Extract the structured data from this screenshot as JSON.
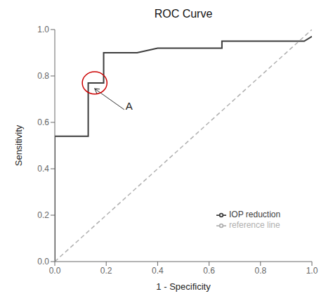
{
  "chart_data": {
    "type": "line",
    "title": "ROC Curve",
    "xlabel": "1 - Specificity",
    "ylabel": "Sensitivity",
    "xlim": [
      0.0,
      1.0
    ],
    "ylim": [
      0.0,
      1.0
    ],
    "xticks": [
      {
        "value": 0.0,
        "label": "0.0"
      },
      0.2,
      0.4,
      0.6,
      0.8,
      {
        "value": 1.0,
        "label": "1.0"
      }
    ],
    "yticks": [
      {
        "value": 0.0,
        "label": "0.0"
      },
      0.2,
      0.4,
      0.6,
      0.8,
      {
        "value": 1.0,
        "label": "1.0"
      }
    ],
    "grid": false,
    "legend": "lower right",
    "series": [
      {
        "name": "IOP reduction",
        "color": "#3d3d3d",
        "line_style": "solid",
        "x": [
          0.0,
          0.0,
          0.13,
          0.13,
          0.19,
          0.19,
          0.32,
          0.4,
          0.5,
          0.65,
          0.65,
          0.97,
          1.0
        ],
        "values": [
          0.0,
          0.54,
          0.54,
          0.77,
          0.77,
          0.9,
          0.9,
          0.92,
          0.92,
          0.92,
          0.95,
          0.95,
          0.97
        ]
      },
      {
        "name": "reference line",
        "color": "#b0b0b0",
        "line_style": "dashed",
        "x": [
          0.0,
          1.0
        ],
        "values": [
          0.0,
          1.0
        ]
      }
    ],
    "annotations": [
      {
        "text": "A",
        "x": 0.27,
        "y": 0.655,
        "arrow_to": [
          0.155,
          0.745
        ]
      }
    ],
    "shapes": [
      {
        "type": "circle",
        "x": 0.155,
        "y": 0.77,
        "radius": 0.048,
        "color": "#cc0000"
      }
    ]
  }
}
